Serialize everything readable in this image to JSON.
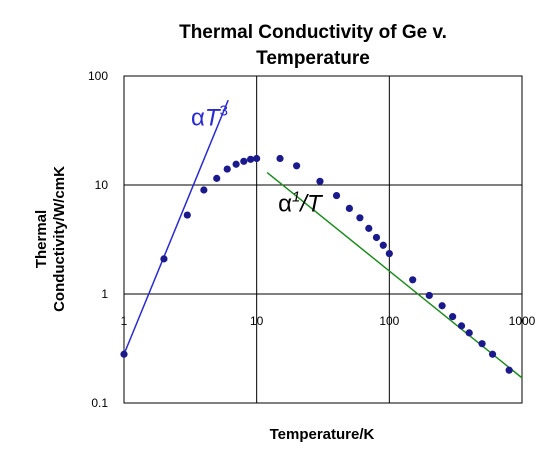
{
  "chart_data": {
    "type": "scatter",
    "title_lines": [
      "Thermal Conductivity of Ge v.",
      "Temperature"
    ],
    "xlabel": "Temperature/K",
    "ylabel_lines": [
      "Thermal",
      "Conductivity/W/cmK"
    ],
    "xscale": "log",
    "yscale": "log",
    "xlim": [
      1,
      1000
    ],
    "ylim": [
      0.1,
      100
    ],
    "x_ticks": [
      "1",
      "10",
      "100",
      "1000"
    ],
    "y_ticks": [
      "100",
      "10",
      "1",
      "0.1"
    ],
    "grid": true,
    "series": [
      {
        "color": "#1a1a8c",
        "points": [
          [
            1,
            0.28
          ],
          [
            2,
            2.1
          ],
          [
            3,
            5.3
          ],
          [
            4,
            9
          ],
          [
            5,
            11.5
          ],
          [
            6,
            14
          ],
          [
            7,
            15.5
          ],
          [
            8,
            16.5
          ],
          [
            9,
            17.2
          ],
          [
            10,
            17.5
          ],
          [
            15,
            17.5
          ],
          [
            20,
            15
          ],
          [
            30,
            10.8
          ],
          [
            40,
            8
          ],
          [
            50,
            6.1
          ],
          [
            60,
            5
          ],
          [
            70,
            4
          ],
          [
            80,
            3.3
          ],
          [
            90,
            2.8
          ],
          [
            100,
            2.35
          ],
          [
            150,
            1.35
          ],
          [
            200,
            0.97
          ],
          [
            250,
            0.78
          ],
          [
            300,
            0.62
          ],
          [
            350,
            0.51
          ],
          [
            400,
            0.44
          ],
          [
            500,
            0.35
          ],
          [
            600,
            0.28
          ],
          [
            800,
            0.2
          ]
        ]
      }
    ],
    "fit_lines": [
      {
        "color": "#2a2ad0",
        "from": [
          1,
          0.28
        ],
        "to": [
          6.1,
          60
        ]
      },
      {
        "color": "#1e8c1e",
        "from": [
          12,
          13
        ],
        "to": [
          1000,
          0.17
        ]
      }
    ],
    "annotations": [
      {
        "prefix": "α",
        "main": "T",
        "sup": "3",
        "color": "#2a2ad0",
        "at": [
          3.2,
          35
        ]
      },
      {
        "prefix": "α",
        "sup": "1",
        "main": "/T",
        "color": "#000000",
        "at": [
          14.5,
          5.7
        ]
      }
    ]
  }
}
